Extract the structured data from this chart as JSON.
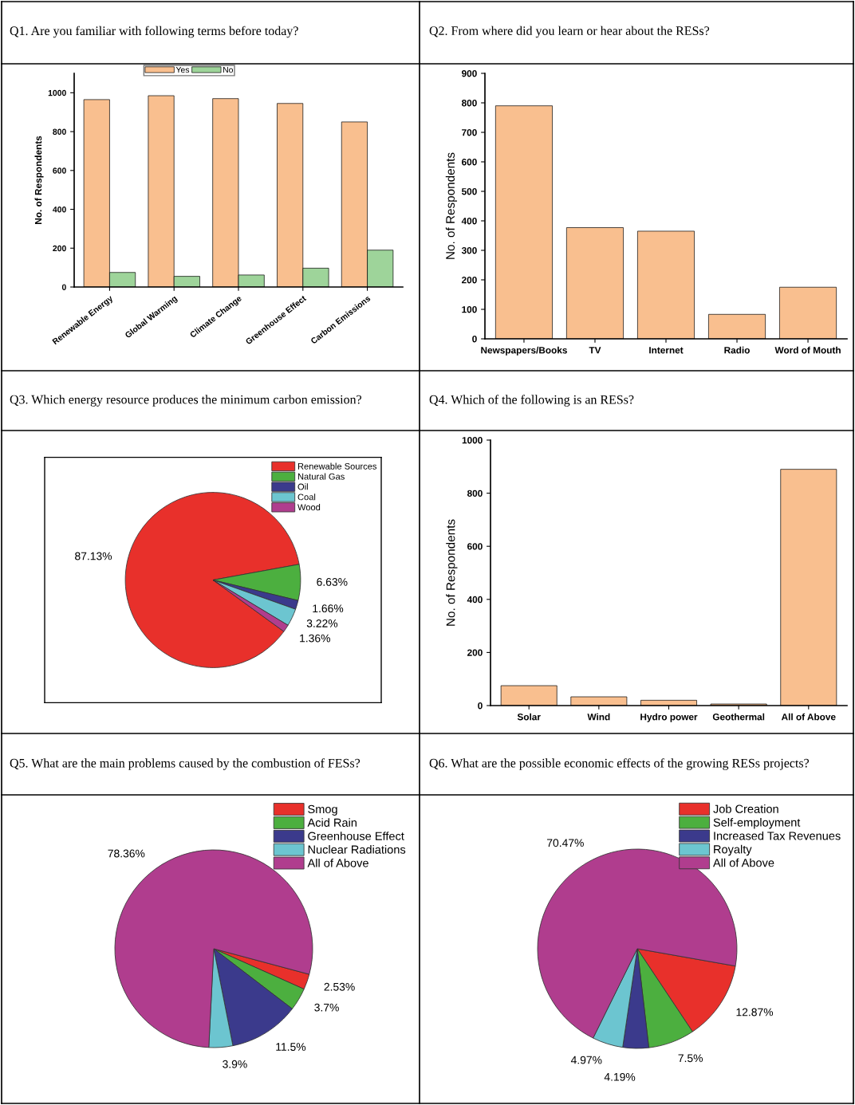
{
  "chart_data": [
    {
      "type": "bar",
      "title": "Q1. Are you familiar with following terms before today?",
      "ylabel": "No. of Respondents",
      "categories": [
        "Renewable Energy",
        "Global Warming",
        "Climate Change",
        "Greenhouse Effect",
        "Carbon Emissions"
      ],
      "series": [
        {
          "name": "Yes",
          "color": "#f9bf8f",
          "values": [
            965,
            985,
            970,
            945,
            850
          ]
        },
        {
          "name": "No",
          "color": "#9ed49a",
          "values": [
            75,
            55,
            62,
            97,
            190
          ]
        }
      ],
      "ylim": [
        0,
        1100
      ],
      "yticks": [
        0,
        200,
        400,
        600,
        800,
        1000
      ],
      "legend": "top"
    },
    {
      "type": "bar",
      "title": "Q2. From where did you learn or hear about the RESs?",
      "ylabel": "No. of Respondents",
      "categories": [
        "Newspapers/Books",
        "TV",
        "Internet",
        "Radio",
        "Word of Mouth"
      ],
      "values": [
        790,
        377,
        365,
        83,
        175
      ],
      "color": "#f9bf8f",
      "ylim": [
        0,
        900
      ],
      "yticks": [
        0,
        100,
        200,
        300,
        400,
        500,
        600,
        700,
        800,
        900
      ]
    },
    {
      "type": "pie",
      "title": "Q3. Which energy resource produces the minimum carbon emission?",
      "categories": [
        "Renewable Sources",
        "Natural Gas",
        "Oil",
        "Coal",
        "Wood"
      ],
      "values": [
        87.13,
        6.63,
        1.66,
        3.22,
        1.36
      ],
      "value_labels": [
        "87.13%",
        "6.63%",
        "1.66%",
        "3.22%",
        "1.36%"
      ],
      "colors": [
        "#e8302b",
        "#4caf3f",
        "#3b3a8c",
        "#6cc5d0",
        "#b03d8e"
      ],
      "legend": "top right"
    },
    {
      "type": "bar",
      "title": "Q4. Which of the following is an RESs?",
      "ylabel": "No. of Respondents",
      "categories": [
        "Solar",
        "Wind",
        "Hydro power",
        "Geothermal",
        "All of Above"
      ],
      "values": [
        75,
        33,
        20,
        6,
        890
      ],
      "color": "#f9bf8f",
      "ylim": [
        0,
        1000
      ],
      "yticks": [
        0,
        200,
        400,
        600,
        800,
        1000
      ]
    },
    {
      "type": "pie",
      "title": "Q5. What are the main problems caused by the combustion of FESs?",
      "categories": [
        "Smog",
        "Acid Rain",
        "Greenhouse Effect",
        "Nuclear Radiations",
        "All of Above"
      ],
      "values": [
        2.53,
        3.7,
        11.5,
        3.9,
        78.36
      ],
      "value_labels": [
        "2.53%",
        "3.7%",
        "11.5%",
        "3.9%",
        "78.36%"
      ],
      "colors": [
        "#e8302b",
        "#4caf3f",
        "#3b3a8c",
        "#6cc5d0",
        "#b03d8e"
      ],
      "legend": "top right"
    },
    {
      "type": "pie",
      "title": "Q6. What are the possible economic effects of the growing RESs projects?",
      "categories": [
        "Job Creation",
        "Self-employment",
        "Increased Tax Revenues",
        "Royalty",
        "All of Above"
      ],
      "values": [
        12.87,
        7.5,
        4.19,
        4.97,
        70.47
      ],
      "value_labels": [
        "12.87%",
        "7.5%",
        "4.19%",
        "4.97%",
        "70.47%"
      ],
      "colors": [
        "#e8302b",
        "#4caf3f",
        "#3b3a8c",
        "#6cc5d0",
        "#b03d8e"
      ],
      "legend": "top right"
    }
  ]
}
